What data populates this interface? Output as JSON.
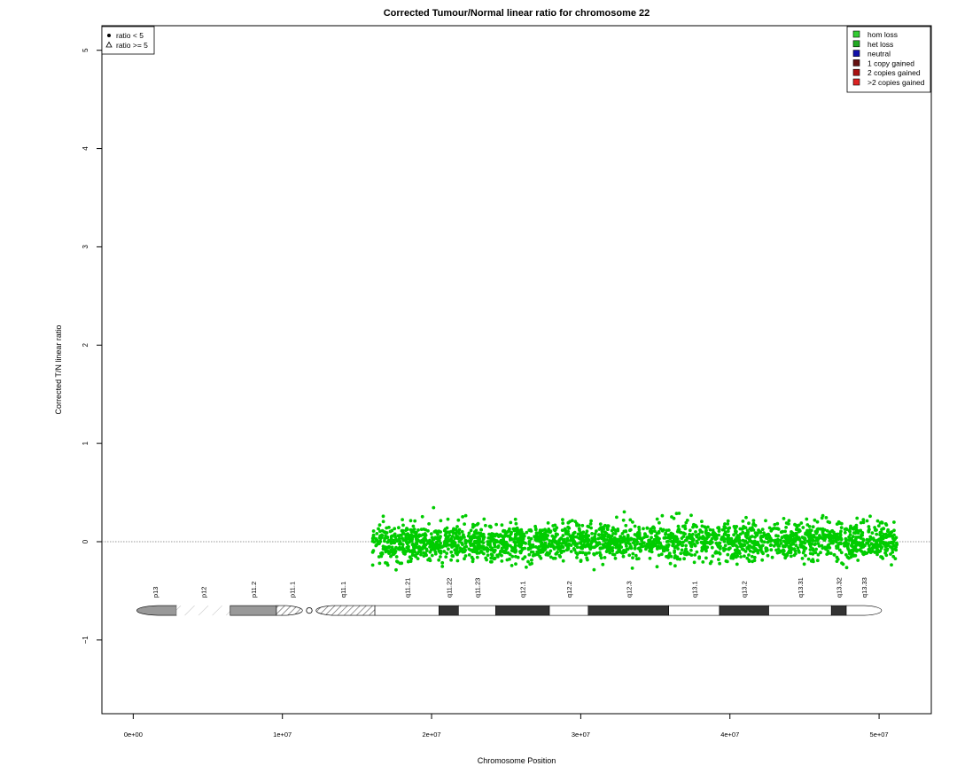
{
  "chart_data": {
    "type": "scatter",
    "title": "Corrected Tumour/Normal linear ratio for chromosome  22",
    "xlabel": "Chromosome Position",
    "ylabel": "Corrected T/N linear ratio",
    "xlim": [
      -2100000,
      53500000
    ],
    "ylim": [
      -1.75,
      5.25
    ],
    "x_ticks": [
      0,
      10000000,
      20000000,
      30000000,
      40000000,
      50000000
    ],
    "x_tick_labels": [
      "0e+00",
      "1e+07",
      "2e+07",
      "3e+07",
      "4e+07",
      "5e+07"
    ],
    "y_ticks": [
      -1,
      0,
      1,
      2,
      3,
      4,
      5
    ],
    "y_tick_labels": [
      "−1",
      "0",
      "1",
      "2",
      "3",
      "4",
      "5"
    ],
    "reference_line_y": 0,
    "shape_legend": [
      {
        "label": "ratio < 5",
        "shape": "filled-circle"
      },
      {
        "label": "ratio >= 5",
        "shape": "open-triangle"
      }
    ],
    "state_legend": [
      {
        "label": "hom loss",
        "color": "#33cc33"
      },
      {
        "label": "het loss",
        "color": "#22aa22"
      },
      {
        "label": "neutral",
        "color": "#1111aa"
      },
      {
        "label": "1 copy gained",
        "color": "#661111"
      },
      {
        "label": "2 copies gained",
        "color": "#aa1111"
      },
      {
        "label": ">2 copies gained",
        "color": "#dd2222"
      }
    ],
    "series": [
      {
        "name": "het loss",
        "color": "#00cc00",
        "x_range": [
          16050000,
          51200000
        ],
        "points": 2400,
        "y_mean": 0.0,
        "y_sd": 0.095,
        "y_range": [
          -0.38,
          0.37
        ]
      }
    ],
    "ideogram": {
      "y": -0.7,
      "bands": [
        {
          "name": "p13",
          "start": 0,
          "end": 2900000,
          "stain": "gvar"
        },
        {
          "name": "p12",
          "start": 2900000,
          "end": 6500000,
          "stain": "stalk"
        },
        {
          "name": "p11.2",
          "start": 6500000,
          "end": 9600000,
          "stain": "gvar"
        },
        {
          "name": "p11.1",
          "start": 9600000,
          "end": 11700000,
          "stain": "acen"
        },
        {
          "name": "q11.1",
          "start": 11900000,
          "end": 16200000,
          "stain": "acen"
        },
        {
          "name": "q11.21",
          "start": 16200000,
          "end": 20500000,
          "stain": "gneg"
        },
        {
          "name": "q11.22",
          "start": 20500000,
          "end": 21800000,
          "stain": "gpos"
        },
        {
          "name": "q11.23",
          "start": 21800000,
          "end": 24300000,
          "stain": "gneg"
        },
        {
          "name": "q12.1",
          "start": 24300000,
          "end": 27900000,
          "stain": "gpos"
        },
        {
          "name": "q12.2",
          "start": 27900000,
          "end": 30500000,
          "stain": "gneg"
        },
        {
          "name": "q12.3",
          "start": 30500000,
          "end": 35900000,
          "stain": "gpos"
        },
        {
          "name": "q13.1",
          "start": 35900000,
          "end": 39300000,
          "stain": "gneg"
        },
        {
          "name": "q13.2",
          "start": 39300000,
          "end": 42600000,
          "stain": "gpos"
        },
        {
          "name": "q13.31",
          "start": 42600000,
          "end": 46800000,
          "stain": "gneg"
        },
        {
          "name": "q13.32",
          "start": 46800000,
          "end": 47800000,
          "stain": "gpos"
        },
        {
          "name": "q13.33",
          "start": 47800000,
          "end": 50200000,
          "stain": "gneg"
        }
      ]
    }
  }
}
